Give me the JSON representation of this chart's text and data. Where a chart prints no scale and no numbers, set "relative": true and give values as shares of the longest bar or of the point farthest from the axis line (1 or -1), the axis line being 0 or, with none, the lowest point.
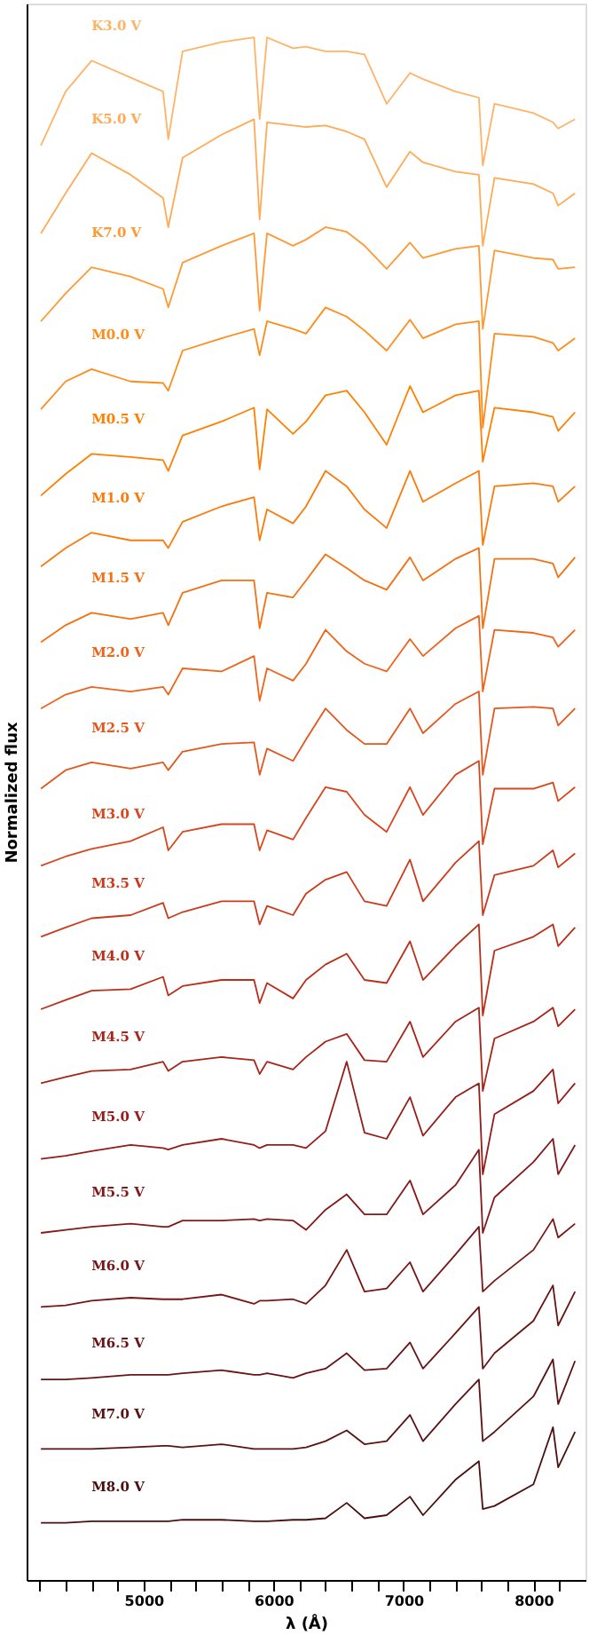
{
  "chart_data": {
    "type": "line",
    "xlabel": "λ (Å)",
    "ylabel": "Normalized flux",
    "relative": true,
    "legend": false,
    "grid": false,
    "xlim": [
      4100,
      8400
    ],
    "xticks": [
      {
        "value": 4200,
        "label": null
      },
      {
        "value": 4400,
        "label": null
      },
      {
        "value": 4600,
        "label": null
      },
      {
        "value": 4800,
        "label": null
      },
      5000,
      {
        "value": 5200,
        "label": null
      },
      {
        "value": 5400,
        "label": null
      },
      {
        "value": 5600,
        "label": null
      },
      {
        "value": 5800,
        "label": null
      },
      6000,
      {
        "value": 6200,
        "label": null
      },
      {
        "value": 6400,
        "label": null
      },
      {
        "value": 6600,
        "label": null
      },
      {
        "value": 6800,
        "label": null
      },
      7000,
      {
        "value": 7200,
        "label": null
      },
      {
        "value": 7400,
        "label": null
      },
      {
        "value": 7600,
        "label": null
      },
      {
        "value": 7800,
        "label": null
      },
      8000,
      {
        "value": 8200,
        "label": null
      }
    ],
    "x": [
      4210,
      4400,
      4600,
      4900,
      5150,
      5190,
      5300,
      5600,
      5850,
      5893,
      5950,
      6150,
      6250,
      6400,
      6563,
      6700,
      6870,
      7050,
      7150,
      7400,
      7580,
      7610,
      7700,
      8000,
      8150,
      8190,
      8320
    ],
    "series": [
      {
        "name": "K3.0 V",
        "color": "#ffb366",
        "values": [
          0.93,
          0.965,
          0.985,
          0.974,
          0.965,
          0.934,
          0.991,
          0.997,
          1.0,
          0.947,
          1.0,
          0.993,
          0.994,
          0.991,
          0.991,
          0.989,
          0.957,
          0.977,
          0.973,
          0.965,
          0.961,
          0.917,
          0.957,
          0.951,
          0.945,
          0.941,
          0.947
        ]
      },
      {
        "name": "K5.0 V",
        "color": "#ffaa55",
        "values": [
          0.873,
          0.899,
          0.925,
          0.911,
          0.896,
          0.877,
          0.922,
          0.937,
          0.947,
          0.882,
          0.945,
          0.943,
          0.942,
          0.943,
          0.939,
          0.934,
          0.903,
          0.926,
          0.919,
          0.913,
          0.911,
          0.865,
          0.909,
          0.905,
          0.899,
          0.891,
          0.899
        ]
      },
      {
        "name": "K7.0 V",
        "color": "#ff9933",
        "values": [
          0.816,
          0.834,
          0.851,
          0.845,
          0.837,
          0.825,
          0.854,
          0.865,
          0.873,
          0.823,
          0.873,
          0.865,
          0.869,
          0.877,
          0.874,
          0.865,
          0.85,
          0.867,
          0.857,
          0.863,
          0.865,
          0.811,
          0.862,
          0.857,
          0.856,
          0.85,
          0.851
        ]
      },
      {
        "name": "M0.0 V",
        "color": "#ff8c1a",
        "values": [
          0.759,
          0.777,
          0.785,
          0.777,
          0.776,
          0.771,
          0.797,
          0.805,
          0.811,
          0.794,
          0.816,
          0.811,
          0.808,
          0.825,
          0.819,
          0.81,
          0.797,
          0.817,
          0.805,
          0.814,
          0.816,
          0.747,
          0.808,
          0.806,
          0.802,
          0.797,
          0.805
        ]
      },
      {
        "name": "M0.5 V",
        "color": "#ff8000",
        "values": [
          0.703,
          0.717,
          0.73,
          0.728,
          0.726,
          0.719,
          0.742,
          0.751,
          0.76,
          0.72,
          0.759,
          0.743,
          0.751,
          0.768,
          0.771,
          0.757,
          0.736,
          0.774,
          0.757,
          0.768,
          0.771,
          0.725,
          0.76,
          0.757,
          0.754,
          0.745,
          0.757
        ]
      },
      {
        "name": "M1.0 V",
        "color": "#fb7a0a",
        "values": [
          0.657,
          0.669,
          0.679,
          0.674,
          0.674,
          0.669,
          0.686,
          0.696,
          0.702,
          0.674,
          0.694,
          0.685,
          0.696,
          0.719,
          0.709,
          0.694,
          0.682,
          0.719,
          0.699,
          0.711,
          0.719,
          0.671,
          0.709,
          0.711,
          0.709,
          0.699,
          0.709
        ]
      },
      {
        "name": "M1.5 V",
        "color": "#f57010",
        "values": [
          0.608,
          0.619,
          0.627,
          0.623,
          0.627,
          0.619,
          0.64,
          0.648,
          0.648,
          0.617,
          0.64,
          0.637,
          0.648,
          0.665,
          0.656,
          0.648,
          0.642,
          0.663,
          0.648,
          0.662,
          0.669,
          0.617,
          0.662,
          0.662,
          0.659,
          0.65,
          0.663
        ]
      },
      {
        "name": "M2.0 V",
        "color": "#ee6418",
        "values": [
          0.565,
          0.574,
          0.579,
          0.576,
          0.579,
          0.574,
          0.591,
          0.589,
          0.599,
          0.57,
          0.591,
          0.583,
          0.594,
          0.616,
          0.602,
          0.594,
          0.589,
          0.61,
          0.599,
          0.617,
          0.625,
          0.576,
          0.616,
          0.614,
          0.611,
          0.605,
          0.616
        ]
      },
      {
        "name": "M2.5 V",
        "color": "#e5561c",
        "values": [
          0.513,
          0.525,
          0.53,
          0.526,
          0.53,
          0.525,
          0.537,
          0.542,
          0.543,
          0.522,
          0.539,
          0.531,
          0.545,
          0.565,
          0.551,
          0.542,
          0.542,
          0.565,
          0.549,
          0.568,
          0.576,
          0.522,
          0.565,
          0.566,
          0.565,
          0.554,
          0.565
        ]
      },
      {
        "name": "M3.0 V",
        "color": "#d9461e",
        "values": [
          0.463,
          0.469,
          0.474,
          0.479,
          0.488,
          0.473,
          0.485,
          0.49,
          0.49,
          0.473,
          0.486,
          0.48,
          0.494,
          0.514,
          0.511,
          0.496,
          0.485,
          0.514,
          0.496,
          0.522,
          0.531,
          0.477,
          0.513,
          0.513,
          0.517,
          0.505,
          0.514
        ]
      },
      {
        "name": "M3.5 V",
        "color": "#cc3a1c",
        "values": [
          0.417,
          0.423,
          0.429,
          0.431,
          0.439,
          0.429,
          0.433,
          0.44,
          0.44,
          0.425,
          0.437,
          0.431,
          0.445,
          0.454,
          0.459,
          0.44,
          0.437,
          0.467,
          0.44,
          0.465,
          0.479,
          0.431,
          0.457,
          0.463,
          0.473,
          0.462,
          0.471
        ]
      },
      {
        "name": "M4.0 V",
        "color": "#bb2e1a",
        "values": [
          0.37,
          0.376,
          0.382,
          0.383,
          0.391,
          0.379,
          0.385,
          0.389,
          0.389,
          0.374,
          0.387,
          0.377,
          0.389,
          0.399,
          0.406,
          0.389,
          0.387,
          0.414,
          0.389,
          0.411,
          0.425,
          0.366,
          0.408,
          0.417,
          0.425,
          0.411,
          0.423
        ]
      },
      {
        "name": "M4.5 V",
        "color": "#a82418",
        "values": [
          0.322,
          0.326,
          0.33,
          0.331,
          0.336,
          0.33,
          0.336,
          0.339,
          0.337,
          0.328,
          0.336,
          0.331,
          0.339,
          0.349,
          0.354,
          0.337,
          0.336,
          0.362,
          0.339,
          0.362,
          0.371,
          0.317,
          0.351,
          0.362,
          0.371,
          0.359,
          0.37
        ]
      },
      {
        "name": "M5.0 V",
        "color": "#951c18",
        "values": [
          0.273,
          0.275,
          0.278,
          0.282,
          0.28,
          0.279,
          0.282,
          0.286,
          0.282,
          0.28,
          0.282,
          0.282,
          0.28,
          0.291,
          0.336,
          0.29,
          0.286,
          0.313,
          0.288,
          0.313,
          0.322,
          0.263,
          0.302,
          0.317,
          0.331,
          0.309,
          0.322
        ]
      },
      {
        "name": "M5.5 V",
        "color": "#851818",
        "values": [
          0.225,
          0.227,
          0.229,
          0.231,
          0.229,
          0.229,
          0.233,
          0.233,
          0.234,
          0.233,
          0.234,
          0.233,
          0.227,
          0.24,
          0.25,
          0.237,
          0.237,
          0.259,
          0.237,
          0.256,
          0.279,
          0.225,
          0.248,
          0.271,
          0.286,
          0.263,
          0.282
        ]
      },
      {
        "name": "M6.0 V",
        "color": "#761616",
        "values": [
          0.177,
          0.178,
          0.181,
          0.183,
          0.182,
          0.182,
          0.182,
          0.185,
          0.179,
          0.181,
          0.181,
          0.182,
          0.179,
          0.191,
          0.214,
          0.187,
          0.189,
          0.206,
          0.187,
          0.211,
          0.229,
          0.187,
          0.194,
          0.214,
          0.234,
          0.222,
          0.231
        ]
      },
      {
        "name": "M6.5 V",
        "color": "#681414",
        "values": [
          0.13,
          0.13,
          0.131,
          0.133,
          0.133,
          0.133,
          0.134,
          0.136,
          0.133,
          0.133,
          0.134,
          0.131,
          0.134,
          0.137,
          0.147,
          0.136,
          0.137,
          0.154,
          0.137,
          0.16,
          0.177,
          0.137,
          0.147,
          0.168,
          0.191,
          0.165,
          0.187
        ]
      },
      {
        "name": "M7.0 V",
        "color": "#5a1212",
        "values": [
          0.085,
          0.085,
          0.085,
          0.086,
          0.087,
          0.087,
          0.086,
          0.088,
          0.085,
          0.085,
          0.085,
          0.085,
          0.086,
          0.09,
          0.097,
          0.088,
          0.09,
          0.107,
          0.09,
          0.114,
          0.13,
          0.09,
          0.096,
          0.119,
          0.143,
          0.114,
          0.142
        ]
      },
      {
        "name": "M8.0 V",
        "color": "#4a1010",
        "values": [
          0.037,
          0.037,
          0.038,
          0.038,
          0.038,
          0.038,
          0.039,
          0.039,
          0.038,
          0.038,
          0.038,
          0.039,
          0.039,
          0.04,
          0.05,
          0.04,
          0.042,
          0.054,
          0.042,
          0.065,
          0.077,
          0.046,
          0.048,
          0.062,
          0.099,
          0.073,
          0.096
        ]
      }
    ]
  }
}
